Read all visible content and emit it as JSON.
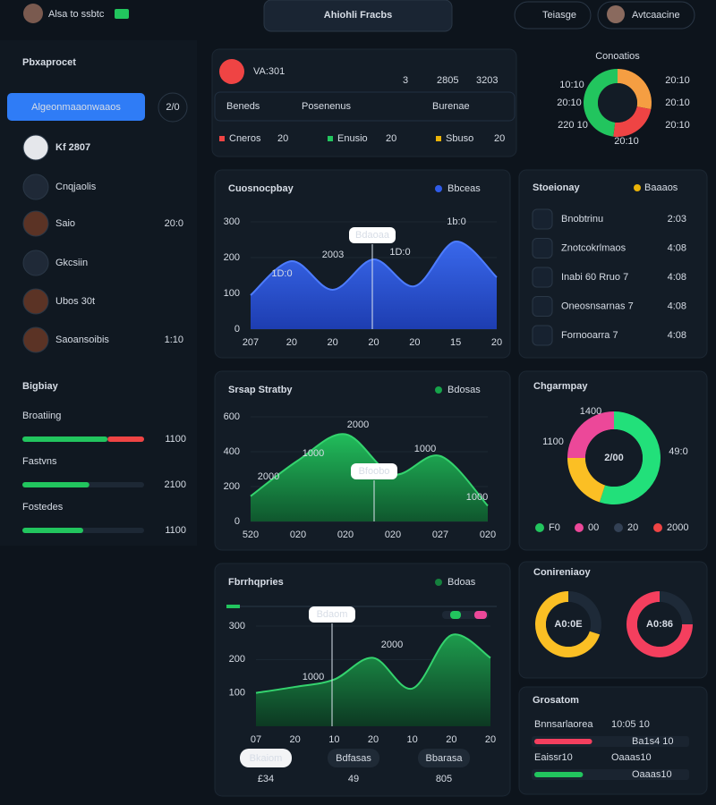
{
  "topbar": {
    "user": "Alsa to ssbtc",
    "center_button": "Ahiohli Fracbs",
    "settings_button": "Teiasge",
    "profile": "Avtcaacine"
  },
  "sidebar": {
    "title": "Pbxaprocet",
    "primary_button": "Algeonmaaonwaaos",
    "badge": "2/0",
    "items": [
      {
        "label": "Kf 2807"
      },
      {
        "label": "Cnqjaolis"
      },
      {
        "label": "Saio",
        "value": "20:0"
      },
      {
        "label": "Gkcsiin"
      },
      {
        "label": "Ubos 30t"
      },
      {
        "label": "Saoansoibis",
        "value": "1:10"
      }
    ],
    "section_title": "Bigbiay",
    "progress": [
      {
        "label": "Broatiing",
        "value": "1100",
        "segments": [
          {
            "percent": 70,
            "color": "#22c55e"
          },
          {
            "percent": 30,
            "color": "#ef4444"
          }
        ]
      },
      {
        "label": "Fastvns",
        "value": "2100",
        "segments": [
          {
            "percent": 55,
            "color": "#22c55e"
          }
        ]
      },
      {
        "label": "Fostedes",
        "value": "1100",
        "segments": [
          {
            "percent": 50,
            "color": "#22c55e"
          }
        ]
      }
    ]
  },
  "summary": {
    "title": "VA:301",
    "stats": [
      "3",
      "2805",
      "3203"
    ],
    "columns": [
      "Beneds",
      "Posenenus",
      "Burenae"
    ],
    "legend": [
      {
        "name": "Cneros",
        "value": "20",
        "color": "#ef4444"
      },
      {
        "name": "Enusio",
        "value": "20",
        "color": "#22c55e"
      },
      {
        "name": "Sbuso",
        "value": "20",
        "color": "#eab308"
      }
    ]
  },
  "list": {
    "title": "Stoeionay",
    "header_legend": "Baaaos",
    "rows": [
      {
        "label": "Bnobtrinu",
        "value": "2:03"
      },
      {
        "label": "Znotcokrlmaos",
        "value": "4:08"
      },
      {
        "label": "Inabi 60 Rruo 7",
        "value": "4:08"
      },
      {
        "label": "Oneosnsarnas 7",
        "value": "4:08"
      },
      {
        "label": "Fornooarra 7",
        "value": "4:08"
      }
    ]
  },
  "bars": {
    "title": "Grosatom",
    "items": [
      {
        "name": "Bnnsarlaorea",
        "value": "10:05 10",
        "bar_label": "Ba1s4 10",
        "bar": 38,
        "color": "#f43f5e"
      },
      {
        "name": "Eaissr10",
        "value": "Oaaas10",
        "bar_label": "Oaaas10",
        "bar": 32,
        "color": "#22c55e"
      }
    ]
  },
  "chart3_buttons": [
    {
      "label": "Bkaiom",
      "value": "£34"
    },
    {
      "label": "Bdfasas",
      "value": "49"
    },
    {
      "label": "Bbarasa",
      "value": "805"
    }
  ],
  "chart_data": [
    {
      "type": "area",
      "title": "Cuosnocpbay",
      "header_legend": "Bbceas",
      "color": "#2f5be8",
      "categories": [
        "207",
        "20",
        "20",
        "20",
        "20",
        "15",
        "20"
      ],
      "values": [
        95,
        190,
        110,
        195,
        120,
        245,
        145
      ],
      "ylim": [
        0,
        300
      ],
      "yticks": [
        0,
        100,
        200,
        300
      ],
      "tooltip": "Bdaoaa",
      "annotations": [
        {
          "text": "1D:0",
          "color": "#60a5fa"
        },
        {
          "text": "2003",
          "color": "#60a5fa"
        },
        {
          "text": "1D:0",
          "color": "#60a5fa"
        },
        {
          "text": "1b:0",
          "color": "#22c55e"
        }
      ]
    },
    {
      "type": "area",
      "title": "Srsap Stratby",
      "header_legend": "Bdosas",
      "color": "#16a34a",
      "categories": [
        "520",
        "020",
        "020",
        "020",
        "027",
        "020"
      ],
      "values": [
        145,
        350,
        500,
        270,
        375,
        90
      ],
      "ylim": [
        0,
        600
      ],
      "yticks": [
        0,
        200,
        400,
        600
      ],
      "tooltip": "Bfoobo",
      "annotations": [
        {
          "text": "2000",
          "color": "#f43f5e"
        },
        {
          "text": "1000",
          "color": "#f43f5e"
        },
        {
          "text": "2000",
          "color": "#f43f5e"
        },
        {
          "text": "1000",
          "color": "#f43f5e"
        },
        {
          "text": "1000",
          "color": "#f43f5e"
        }
      ]
    },
    {
      "type": "area",
      "title": "Fbrrhqpries",
      "header_legend": "Bdoas",
      "color": "#15803d",
      "categories": [
        "07",
        "20",
        "10",
        "20",
        "10",
        "20",
        "20"
      ],
      "values": [
        100,
        118,
        140,
        205,
        113,
        273,
        205
      ],
      "ylim": [
        0,
        300
      ],
      "yticks": [
        100,
        200,
        300
      ],
      "tooltip": "Bdaom",
      "annotations": [
        {
          "text": "2000",
          "color": "#f43f5e"
        },
        {
          "text": "1000",
          "color": "#f43f5e"
        }
      ]
    },
    {
      "type": "donut",
      "title": "Conoatios",
      "values": [
        28,
        24,
        48
      ],
      "colors": [
        "#f59e42",
        "#ef4444",
        "#22c55e"
      ],
      "annotations": [
        "10:10",
        "20:10",
        "220 10",
        "20:10",
        "20:10",
        "20:10",
        "20:10"
      ]
    },
    {
      "type": "donut",
      "title": "Chgarmpay",
      "values": [
        55,
        20,
        25
      ],
      "colors": [
        "#22e07a",
        "#fbbf24",
        "#ec4899"
      ],
      "center_label": "2/00",
      "annotations": [
        "1400",
        "1100",
        "49:0"
      ],
      "legend": [
        {
          "name": "F0",
          "color": "#22c55e"
        },
        {
          "name": "00",
          "color": "#ec4899"
        },
        {
          "name": "20",
          "color": "#334155"
        },
        {
          "name": "2000",
          "color": "#ef4444"
        }
      ]
    },
    {
      "type": "donut",
      "title": "Conireniaoy",
      "values": [
        30,
        70
      ],
      "colors": [
        "#1e2a38",
        "#fbbf24"
      ],
      "center_label": "A0:0E"
    },
    {
      "type": "donut",
      "values": [
        25,
        75
      ],
      "colors": [
        "#1e2a38",
        "#f43f5e"
      ],
      "center_label": "A0:86"
    }
  ]
}
